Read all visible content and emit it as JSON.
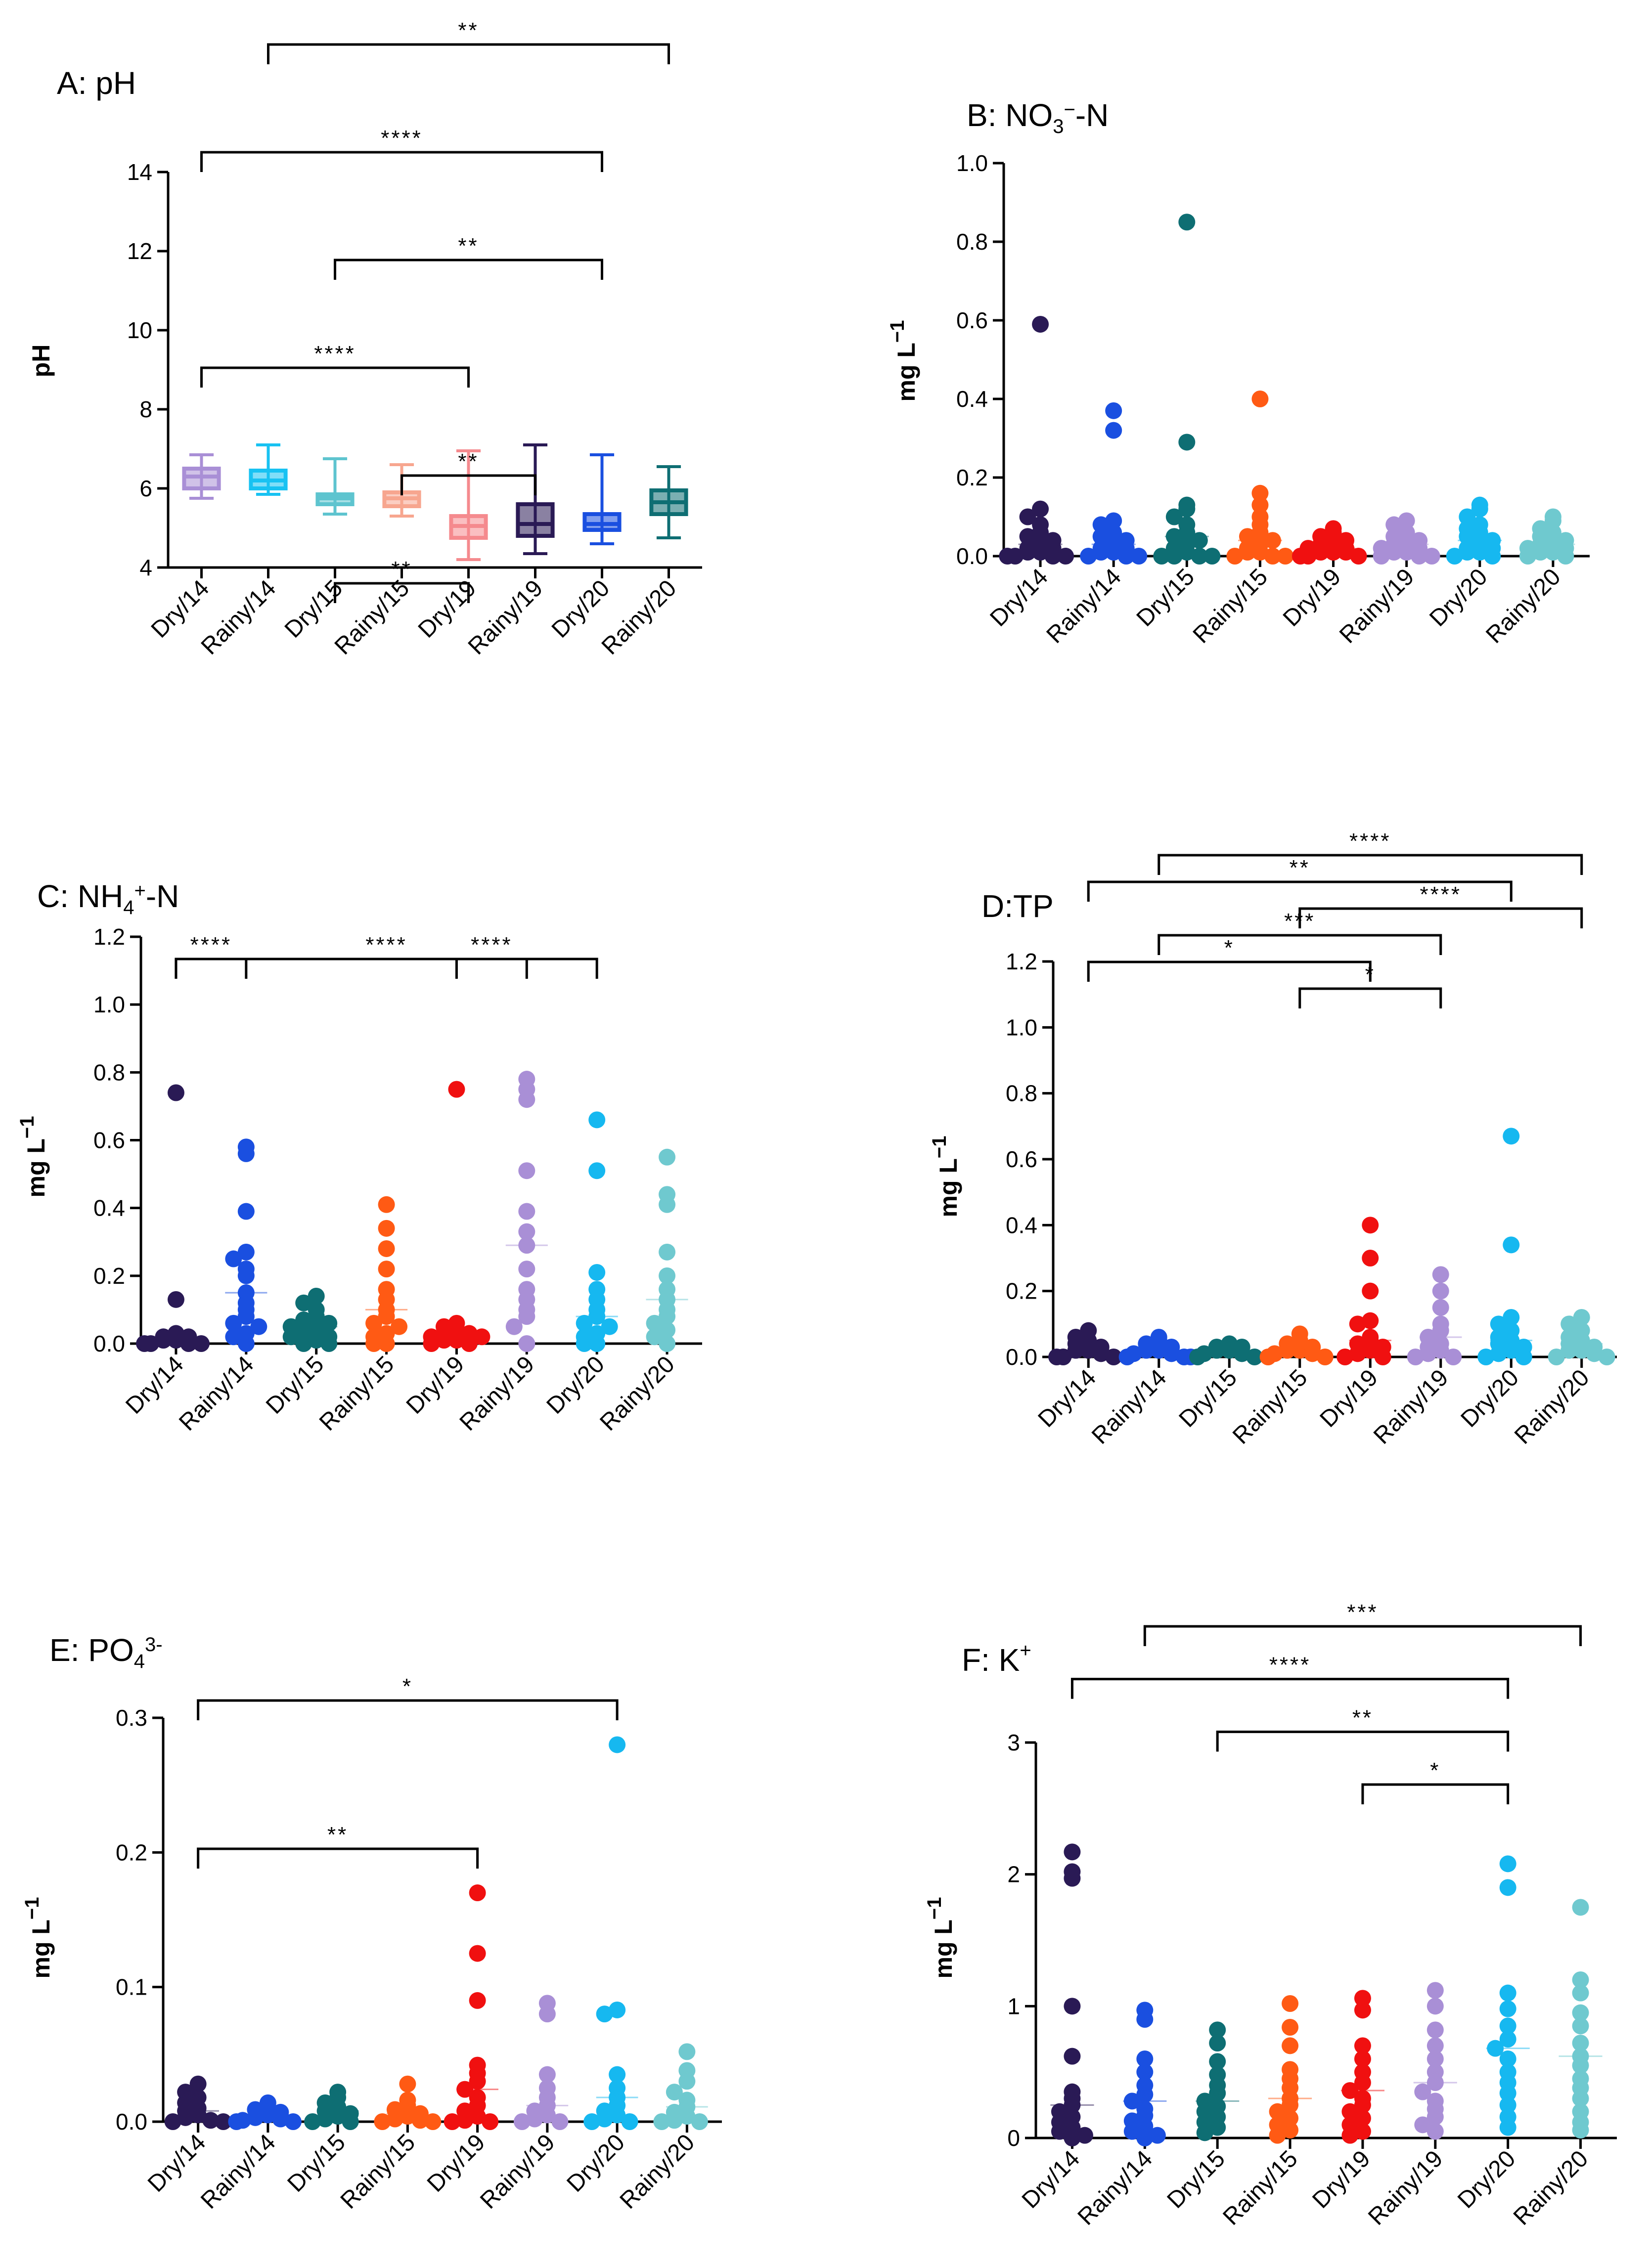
{
  "colors": [
    "#2a1a55",
    "#1a4fe0",
    "#0e6e73",
    "#ff5a14",
    "#f01010",
    "#a98fd6",
    "#16b8f0",
    "#6fc9cf"
  ],
  "box_colors": [
    "#a98fd6",
    "#18c2f2",
    "#5ec4cf",
    "#f7a68f",
    "#f58a8e",
    "#2a1a55",
    "#1a4fe0",
    "#0e6e73"
  ],
  "chart_data": [
    {
      "panel": "A",
      "type": "box",
      "title": "A: pH",
      "ylabel": "pH",
      "ylim": [
        4,
        14
      ],
      "yticks": [
        "4",
        "6",
        "8",
        "10",
        "12",
        "14"
      ],
      "categories": [
        "Dry/14",
        "Rainy/14",
        "Dry/15",
        "Rainy/15",
        "Dry/19",
        "Rainy/19",
        "Dry/20",
        "Rainy/20"
      ],
      "boxes": [
        {
          "min": 5.75,
          "q1": 6.0,
          "median": 6.3,
          "q3": 6.5,
          "max": 6.85
        },
        {
          "min": 5.85,
          "q1": 6.0,
          "median": 6.2,
          "q3": 6.45,
          "max": 7.1
        },
        {
          "min": 5.35,
          "q1": 5.6,
          "median": 5.75,
          "q3": 5.85,
          "max": 6.75
        },
        {
          "min": 5.3,
          "q1": 5.55,
          "median": 5.75,
          "q3": 5.9,
          "max": 6.6
        },
        {
          "min": 4.2,
          "q1": 4.75,
          "median": 5.05,
          "q3": 5.3,
          "max": 6.95
        },
        {
          "min": 4.35,
          "q1": 4.8,
          "median": 5.1,
          "q3": 5.6,
          "max": 7.1
        },
        {
          "min": 4.6,
          "q1": 4.95,
          "median": 5.1,
          "q3": 5.35,
          "max": 6.85
        },
        {
          "min": 4.75,
          "q1": 5.35,
          "median": 5.65,
          "q3": 5.95,
          "max": 6.55
        }
      ],
      "brackets": [
        {
          "from": 1,
          "to": 7,
          "label": "**"
        },
        {
          "from": 0,
          "to": 6,
          "label": "****"
        },
        {
          "from": 2,
          "to": 6,
          "label": "**"
        },
        {
          "from": 0,
          "to": 4,
          "label": "****"
        },
        {
          "from": 3,
          "to": 5,
          "label": "**"
        },
        {
          "from": 2,
          "to": 4,
          "label": "**"
        }
      ]
    },
    {
      "panel": "B",
      "type": "scatter",
      "title": "B: NO3−-N",
      "ylabel": "mg L−1",
      "ylim": [
        0,
        1.0
      ],
      "yticks": [
        "0.0",
        "0.2",
        "0.4",
        "0.6",
        "0.8",
        "1.0"
      ],
      "categories": [
        "Dry/14",
        "Rainy/14",
        "Dry/15",
        "Rainy/15",
        "Dry/19",
        "Rainy/19",
        "Dry/20",
        "Rainy/20"
      ],
      "points": [
        [
          0.59,
          0.12,
          0.1,
          0.08,
          0.06,
          0.05,
          0.04,
          0.03,
          0.02,
          0.02,
          0.01,
          0.01,
          0.0,
          0.0,
          0.0,
          0.0
        ],
        [
          0.37,
          0.32,
          0.09,
          0.08,
          0.06,
          0.05,
          0.04,
          0.03,
          0.02,
          0.02,
          0.01,
          0.01,
          0.0,
          0.0,
          0.0
        ],
        [
          0.85,
          0.29,
          0.13,
          0.12,
          0.1,
          0.08,
          0.06,
          0.05,
          0.04,
          0.03,
          0.02,
          0.01,
          0.0,
          0.0,
          0.0,
          0.0
        ],
        [
          0.4,
          0.16,
          0.13,
          0.1,
          0.08,
          0.06,
          0.05,
          0.04,
          0.03,
          0.02,
          0.01,
          0.01,
          0.0,
          0.0,
          0.0
        ],
        [
          0.07,
          0.06,
          0.05,
          0.04,
          0.03,
          0.03,
          0.02,
          0.02,
          0.01,
          0.01,
          0.01,
          0.0,
          0.0,
          0.0
        ],
        [
          0.09,
          0.08,
          0.06,
          0.05,
          0.04,
          0.03,
          0.03,
          0.02,
          0.02,
          0.01,
          0.01,
          0.0,
          0.0,
          0.0
        ],
        [
          0.13,
          0.12,
          0.1,
          0.08,
          0.07,
          0.06,
          0.05,
          0.04,
          0.03,
          0.02,
          0.02,
          0.01,
          0.01,
          0.0,
          0.0
        ],
        [
          0.1,
          0.09,
          0.07,
          0.06,
          0.05,
          0.04,
          0.03,
          0.03,
          0.02,
          0.02,
          0.01,
          0.01,
          0.0,
          0.0
        ]
      ],
      "brackets": []
    },
    {
      "panel": "C",
      "type": "scatter",
      "title": "C: NH4+-N",
      "ylabel": "mg L−1",
      "ylim": [
        0,
        1.2
      ],
      "yticks": [
        "0.0",
        "0.2",
        "0.4",
        "0.6",
        "0.8",
        "1.0",
        "1.2"
      ],
      "categories": [
        "Dry/14",
        "Rainy/14",
        "Dry/15",
        "Rainy/15",
        "Dry/19",
        "Rainy/19",
        "Dry/20",
        "Rainy/20"
      ],
      "points": [
        [
          0.74,
          0.13,
          0.03,
          0.02,
          0.02,
          0.01,
          0.01,
          0.0,
          0.0,
          0.0,
          0.0
        ],
        [
          0.58,
          0.56,
          0.39,
          0.27,
          0.25,
          0.22,
          0.2,
          0.15,
          0.12,
          0.1,
          0.08,
          0.06,
          0.05,
          0.03,
          0.02,
          0.0
        ],
        [
          0.14,
          0.12,
          0.1,
          0.08,
          0.07,
          0.06,
          0.05,
          0.04,
          0.03,
          0.02,
          0.02,
          0.01,
          0.0,
          0.0
        ],
        [
          0.41,
          0.34,
          0.28,
          0.22,
          0.16,
          0.13,
          0.1,
          0.08,
          0.06,
          0.05,
          0.03,
          0.02,
          0.0,
          0.0
        ],
        [
          0.75,
          0.06,
          0.05,
          0.04,
          0.03,
          0.03,
          0.02,
          0.02,
          0.01,
          0.01,
          0.0,
          0.0
        ],
        [
          0.78,
          0.75,
          0.72,
          0.51,
          0.39,
          0.33,
          0.29,
          0.22,
          0.16,
          0.13,
          0.1,
          0.08,
          0.05,
          0.0
        ],
        [
          0.66,
          0.51,
          0.21,
          0.16,
          0.13,
          0.1,
          0.08,
          0.06,
          0.05,
          0.03,
          0.02,
          0.0,
          0.0
        ],
        [
          0.55,
          0.44,
          0.41,
          0.27,
          0.2,
          0.16,
          0.13,
          0.1,
          0.08,
          0.06,
          0.04,
          0.02,
          0.0
        ]
      ],
      "brackets": [
        {
          "from": 0,
          "to": 6,
          "label": "****"
        },
        {
          "from": 0,
          "to": 1,
          "label": "****"
        },
        {
          "from": 4,
          "to": 5,
          "label": "****"
        }
      ]
    },
    {
      "panel": "D",
      "type": "scatter",
      "title": "D:TP",
      "ylabel": "mg L−1",
      "ylim": [
        0,
        1.2
      ],
      "yticks": [
        "0.0",
        "0.2",
        "0.4",
        "0.6",
        "0.8",
        "1.0",
        "1.2"
      ],
      "categories": [
        "Dry/14",
        "Rainy/14",
        "Dry/15",
        "Rainy/15",
        "Dry/19",
        "Rainy/19",
        "Dry/20",
        "Rainy/20"
      ],
      "points": [
        [
          0.08,
          0.06,
          0.05,
          0.04,
          0.03,
          0.02,
          0.02,
          0.01,
          0.0,
          0.0,
          0.0
        ],
        [
          0.06,
          0.05,
          0.04,
          0.03,
          0.02,
          0.02,
          0.01,
          0.01,
          0.0,
          0.0,
          0.0
        ],
        [
          0.04,
          0.03,
          0.03,
          0.02,
          0.02,
          0.01,
          0.01,
          0.0,
          0.0
        ],
        [
          0.07,
          0.05,
          0.04,
          0.03,
          0.02,
          0.02,
          0.01,
          0.01,
          0.0,
          0.0
        ],
        [
          0.4,
          0.3,
          0.2,
          0.11,
          0.1,
          0.06,
          0.05,
          0.04,
          0.03,
          0.02,
          0.01,
          0.0,
          0.0
        ],
        [
          0.25,
          0.2,
          0.15,
          0.1,
          0.08,
          0.06,
          0.04,
          0.03,
          0.02,
          0.01,
          0.0,
          0.0
        ],
        [
          0.67,
          0.34,
          0.12,
          0.1,
          0.08,
          0.06,
          0.05,
          0.04,
          0.03,
          0.02,
          0.01,
          0.0,
          0.0
        ],
        [
          0.12,
          0.1,
          0.08,
          0.06,
          0.05,
          0.04,
          0.03,
          0.02,
          0.02,
          0.01,
          0.0,
          0.0
        ]
      ],
      "brackets": [
        {
          "from": 1,
          "to": 7,
          "label": "****"
        },
        {
          "from": 0,
          "to": 6,
          "label": "**"
        },
        {
          "from": 3,
          "to": 7,
          "label": "****"
        },
        {
          "from": 1,
          "to": 5,
          "label": "***"
        },
        {
          "from": 0,
          "to": 4,
          "label": "*"
        },
        {
          "from": 3,
          "to": 5,
          "label": "*"
        }
      ]
    },
    {
      "panel": "E",
      "type": "scatter",
      "title": "E: PO43-",
      "ylabel": "mg L−1",
      "ylim": [
        0,
        0.3
      ],
      "yticks": [
        "0.0",
        "0.1",
        "0.2",
        "0.3"
      ],
      "categories": [
        "Dry/14",
        "Rainy/14",
        "Dry/15",
        "Rainy/15",
        "Dry/19",
        "Rainy/19",
        "Dry/20",
        "Rainy/20"
      ],
      "points": [
        [
          0.028,
          0.022,
          0.018,
          0.014,
          0.01,
          0.008,
          0.005,
          0.003,
          0.001,
          0.0,
          0.0
        ],
        [
          0.014,
          0.011,
          0.009,
          0.007,
          0.005,
          0.003,
          0.002,
          0.001,
          0.0,
          0.0
        ],
        [
          0.022,
          0.018,
          0.014,
          0.011,
          0.008,
          0.006,
          0.004,
          0.002,
          0.0,
          0.0
        ],
        [
          0.028,
          0.016,
          0.012,
          0.009,
          0.006,
          0.004,
          0.002,
          0.001,
          0.0,
          0.0
        ],
        [
          0.17,
          0.125,
          0.09,
          0.042,
          0.036,
          0.03,
          0.024,
          0.018,
          0.012,
          0.008,
          0.004,
          0.001,
          0.0,
          0.0
        ],
        [
          0.088,
          0.08,
          0.035,
          0.025,
          0.018,
          0.012,
          0.008,
          0.005,
          0.002,
          0.0,
          0.0
        ],
        [
          0.28,
          0.083,
          0.08,
          0.035,
          0.025,
          0.018,
          0.012,
          0.008,
          0.005,
          0.002,
          0.0,
          0.0
        ],
        [
          0.052,
          0.038,
          0.03,
          0.022,
          0.016,
          0.011,
          0.007,
          0.004,
          0.001,
          0.0,
          0.0
        ]
      ],
      "brackets": [
        {
          "from": 0,
          "to": 6,
          "label": "*"
        },
        {
          "from": 0,
          "to": 4,
          "label": "**"
        }
      ]
    },
    {
      "panel": "F",
      "type": "scatter",
      "title": "F: K+",
      "ylabel": "mg L−1",
      "ylim": [
        0,
        3
      ],
      "yticks": [
        "0",
        "1",
        "2",
        "3"
      ],
      "categories": [
        "Dry/14",
        "Rainy/14",
        "Dry/15",
        "Rainy/15",
        "Dry/19",
        "Rainy/19",
        "Dry/20",
        "Rainy/20"
      ],
      "points": [
        [
          2.17,
          2.02,
          1.97,
          1.0,
          0.62,
          0.35,
          0.3,
          0.25,
          0.2,
          0.16,
          0.12,
          0.08,
          0.05,
          0.02,
          0.0
        ],
        [
          0.97,
          0.9,
          0.6,
          0.5,
          0.4,
          0.33,
          0.28,
          0.22,
          0.17,
          0.13,
          0.09,
          0.05,
          0.02,
          0.0
        ],
        [
          0.82,
          0.72,
          0.58,
          0.48,
          0.4,
          0.34,
          0.28,
          0.24,
          0.2,
          0.16,
          0.12,
          0.08,
          0.04
        ],
        [
          1.02,
          0.84,
          0.7,
          0.52,
          0.45,
          0.38,
          0.3,
          0.25,
          0.2,
          0.15,
          0.1,
          0.06,
          0.02
        ],
        [
          1.06,
          0.97,
          0.7,
          0.6,
          0.5,
          0.42,
          0.36,
          0.3,
          0.25,
          0.2,
          0.15,
          0.1,
          0.05,
          0.02
        ],
        [
          1.12,
          1.0,
          0.82,
          0.7,
          0.6,
          0.5,
          0.42,
          0.35,
          0.28,
          0.22,
          0.16,
          0.1,
          0.05
        ],
        [
          2.08,
          1.9,
          1.1,
          0.98,
          0.85,
          0.75,
          0.68,
          0.6,
          0.5,
          0.42,
          0.34,
          0.25,
          0.16,
          0.08
        ],
        [
          1.75,
          1.2,
          1.1,
          0.95,
          0.85,
          0.72,
          0.62,
          0.55,
          0.45,
          0.38,
          0.3,
          0.2,
          0.12,
          0.06
        ]
      ],
      "brackets": [
        {
          "from": 1,
          "to": 7,
          "label": "***"
        },
        {
          "from": 0,
          "to": 6,
          "label": "****"
        },
        {
          "from": 2,
          "to": 6,
          "label": "**"
        },
        {
          "from": 4,
          "to": 6,
          "label": "*"
        }
      ]
    }
  ]
}
